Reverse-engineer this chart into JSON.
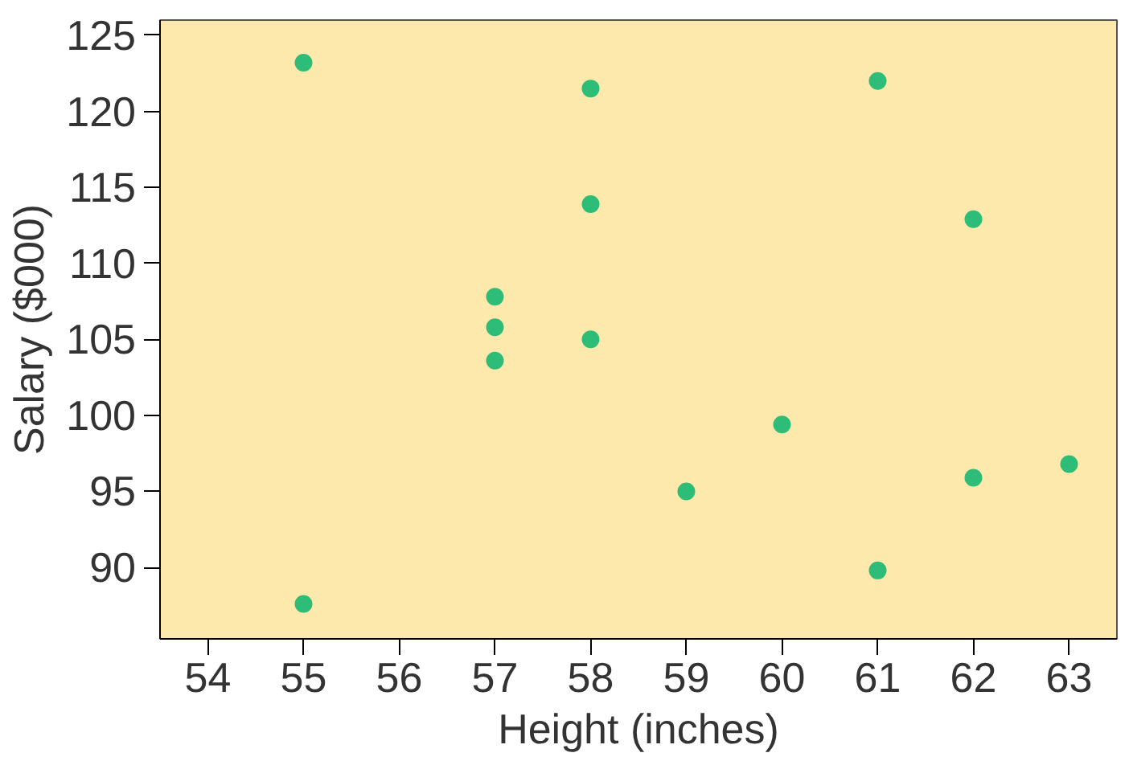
{
  "chart_data": {
    "type": "scatter",
    "xlabel": "Height (inches)",
    "ylabel": "Salary ($000)",
    "x": [
      55,
      58,
      61,
      58,
      62,
      57,
      57,
      57,
      58,
      60,
      59,
      62,
      63,
      61,
      55
    ],
    "series": [
      {
        "color": "#2ebd78",
        "values": [
          123.2,
          121.5,
          122,
          113.9,
          112.9,
          107.8,
          105.8,
          103.6,
          105,
          99.4,
          95,
          95.9,
          96.8,
          89.8,
          87.6
        ]
      }
    ],
    "xlim": [
      53.5,
      63.5
    ],
    "ylim": [
      85.3,
      126
    ],
    "xticks": [
      54,
      55,
      56,
      57,
      58,
      59,
      60,
      61,
      62,
      63
    ],
    "yticks": [
      90,
      95,
      100,
      105,
      110,
      115,
      120,
      125
    ],
    "grid": false,
    "marker": "circle"
  }
}
